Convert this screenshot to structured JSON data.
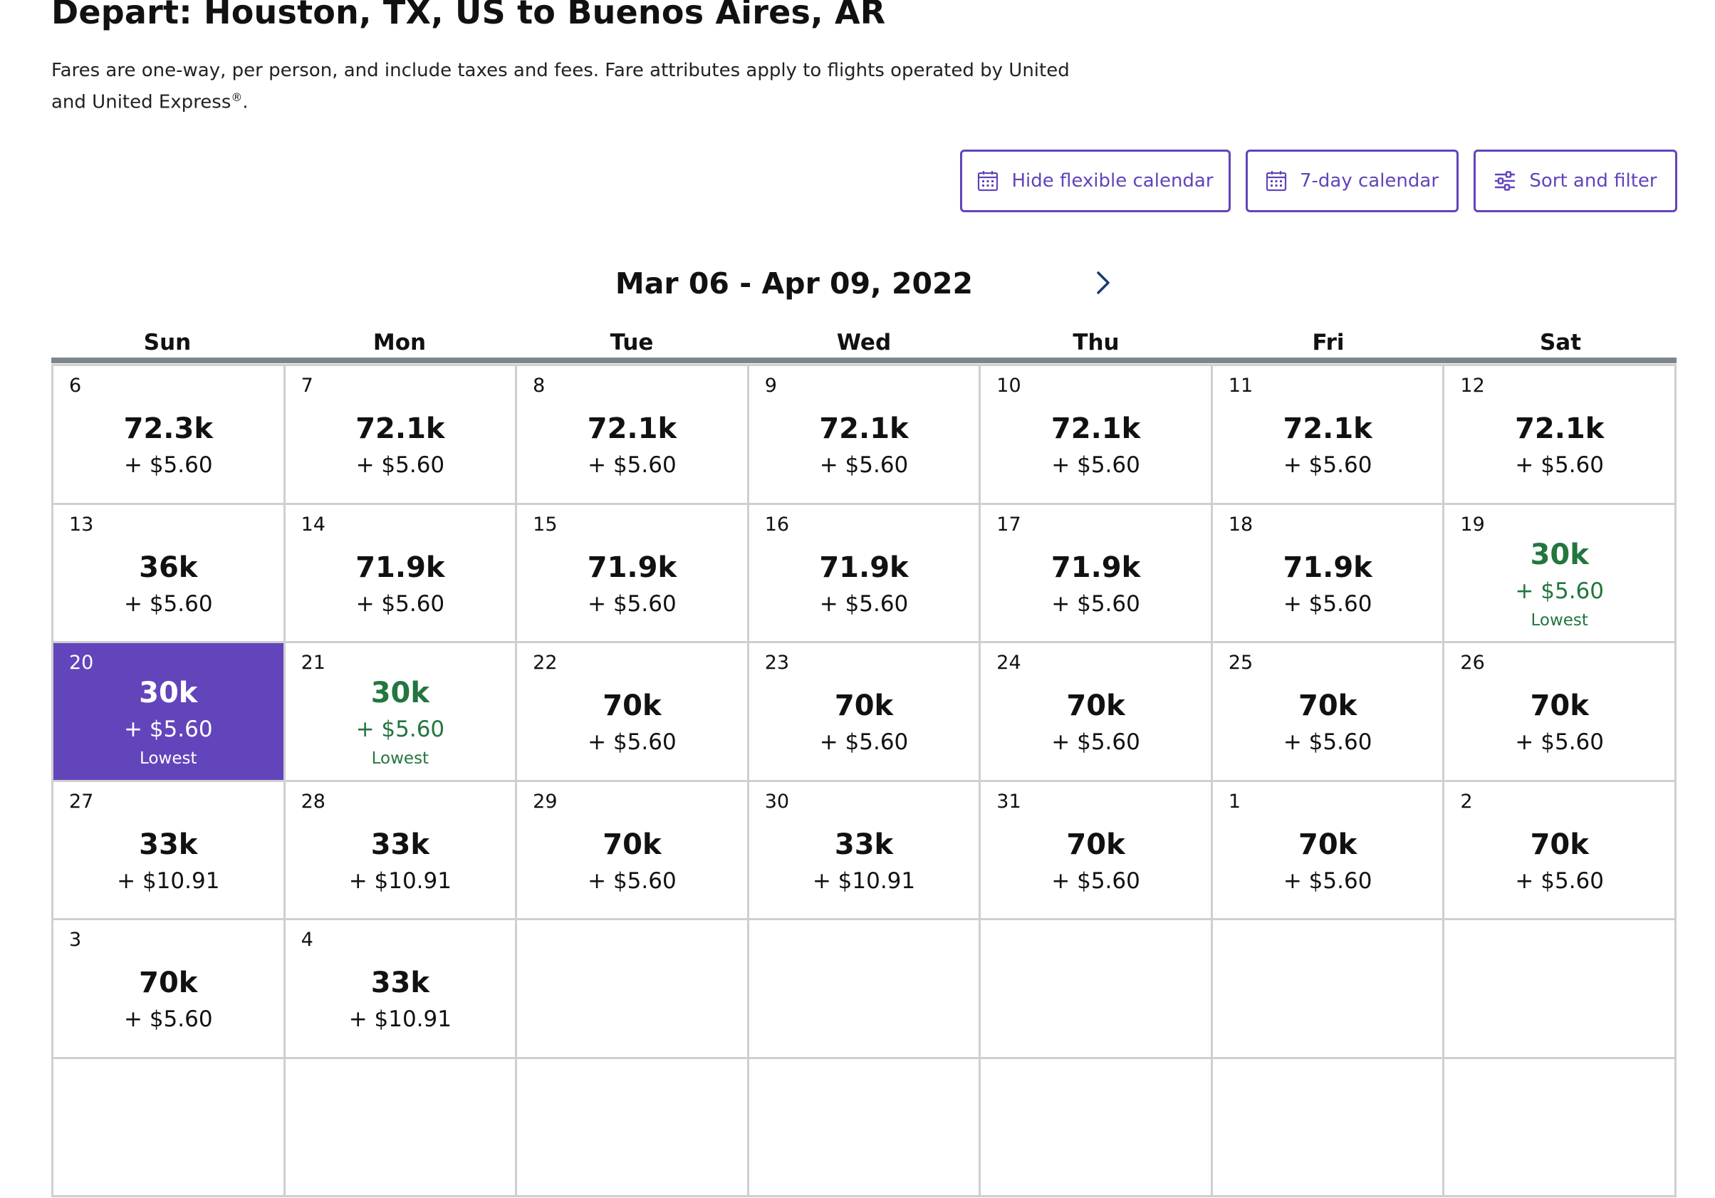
{
  "header": {
    "title": "Depart: Houston, TX, US to Buenos Aires, AR",
    "subtitle": "Fares are one-way, per person, and include taxes and fees. Fare attributes apply to flights operated by United and United Express",
    "subtitle_mark": "®",
    "subtitle_end": "."
  },
  "toolbar": {
    "hide_calendar_label": "Hide flexible calendar",
    "seven_day_label": "7-day calendar",
    "sort_filter_label": "Sort and filter"
  },
  "calendar": {
    "range": "Mar 06 - Apr 09, 2022",
    "weekdays": [
      "Sun",
      "Mon",
      "Tue",
      "Wed",
      "Thu",
      "Fri",
      "Sat"
    ],
    "lowest_label": "Lowest",
    "colors": {
      "accent": "#6244bb",
      "lowest": "#23763e",
      "rule": "#7c878b",
      "border": "#cfcfcf"
    },
    "weeks": [
      [
        {
          "day": "6",
          "miles": "72.3k",
          "tax": "+ $5.60"
        },
        {
          "day": "7",
          "miles": "72.1k",
          "tax": "+ $5.60"
        },
        {
          "day": "8",
          "miles": "72.1k",
          "tax": "+ $5.60"
        },
        {
          "day": "9",
          "miles": "72.1k",
          "tax": "+ $5.60"
        },
        {
          "day": "10",
          "miles": "72.1k",
          "tax": "+ $5.60"
        },
        {
          "day": "11",
          "miles": "72.1k",
          "tax": "+ $5.60"
        },
        {
          "day": "12",
          "miles": "72.1k",
          "tax": "+ $5.60"
        }
      ],
      [
        {
          "day": "13",
          "miles": "36k",
          "tax": "+ $5.60"
        },
        {
          "day": "14",
          "miles": "71.9k",
          "tax": "+ $5.60"
        },
        {
          "day": "15",
          "miles": "71.9k",
          "tax": "+ $5.60"
        },
        {
          "day": "16",
          "miles": "71.9k",
          "tax": "+ $5.60"
        },
        {
          "day": "17",
          "miles": "71.9k",
          "tax": "+ $5.60"
        },
        {
          "day": "18",
          "miles": "71.9k",
          "tax": "+ $5.60"
        },
        {
          "day": "19",
          "miles": "30k",
          "tax": "+ $5.60",
          "lowest": true
        }
      ],
      [
        {
          "day": "20",
          "miles": "30k",
          "tax": "+ $5.60",
          "lowest": true,
          "selected": true
        },
        {
          "day": "21",
          "miles": "30k",
          "tax": "+ $5.60",
          "lowest": true
        },
        {
          "day": "22",
          "miles": "70k",
          "tax": "+ $5.60"
        },
        {
          "day": "23",
          "miles": "70k",
          "tax": "+ $5.60"
        },
        {
          "day": "24",
          "miles": "70k",
          "tax": "+ $5.60"
        },
        {
          "day": "25",
          "miles": "70k",
          "tax": "+ $5.60"
        },
        {
          "day": "26",
          "miles": "70k",
          "tax": "+ $5.60"
        }
      ],
      [
        {
          "day": "27",
          "miles": "33k",
          "tax": "+ $10.91"
        },
        {
          "day": "28",
          "miles": "33k",
          "tax": "+ $10.91"
        },
        {
          "day": "29",
          "miles": "70k",
          "tax": "+ $5.60"
        },
        {
          "day": "30",
          "miles": "33k",
          "tax": "+ $10.91"
        },
        {
          "day": "31",
          "miles": "70k",
          "tax": "+ $5.60"
        },
        {
          "day": "1",
          "miles": "70k",
          "tax": "+ $5.60"
        },
        {
          "day": "2",
          "miles": "70k",
          "tax": "+ $5.60"
        }
      ],
      [
        {
          "day": "3",
          "miles": "70k",
          "tax": "+ $5.60"
        },
        {
          "day": "4",
          "miles": "33k",
          "tax": "+ $10.91"
        },
        null,
        null,
        null,
        null,
        null
      ]
    ]
  }
}
